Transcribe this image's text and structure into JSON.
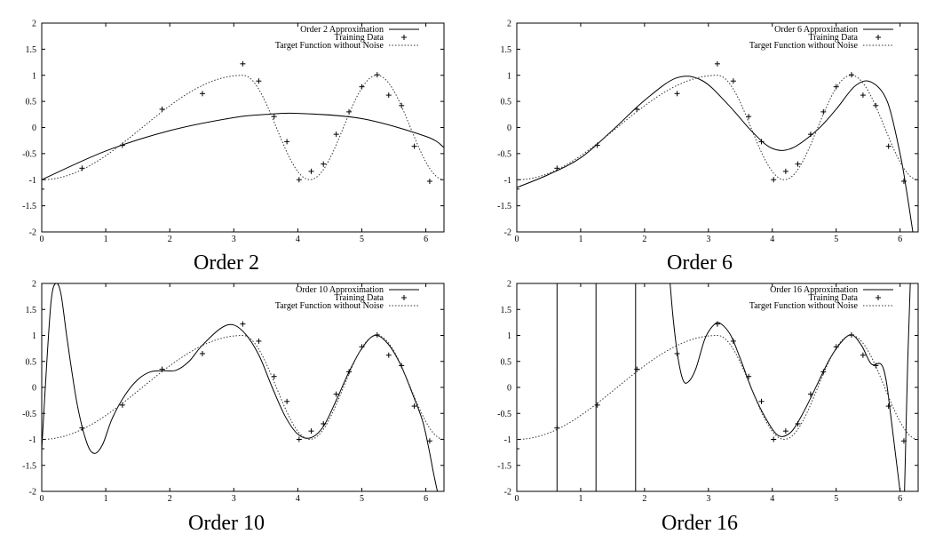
{
  "figure": {
    "captions": [
      "Order 2",
      "Order 6",
      "Order 10",
      "Order 16"
    ]
  },
  "chart_data": [
    {
      "type": "line",
      "order": 2,
      "legend_position": "top-right",
      "xlim": [
        0,
        6.2832
      ],
      "ylim": [
        -2,
        2
      ],
      "x_ticks": [
        0,
        1,
        2,
        3,
        4,
        5,
        6
      ],
      "y_ticks": [
        -2,
        -1.5,
        -1,
        -0.5,
        0,
        0.5,
        1,
        1.5,
        2
      ],
      "grid": false,
      "series": [
        {
          "name": "Order 2 Approximation",
          "style": "solid",
          "x": [
            0,
            1,
            2,
            3,
            3.5,
            4,
            5,
            6,
            6.28
          ],
          "y": [
            -1.0,
            -0.45,
            -0.06,
            0.19,
            0.25,
            0.27,
            0.17,
            -0.17,
            -0.38
          ]
        },
        {
          "name": "Training Data",
          "style": "plus",
          "x": [
            0,
            0.63,
            1.26,
            1.88,
            2.51,
            3.14,
            3.39,
            3.63,
            3.83,
            4.02,
            4.21,
            4.4,
            4.6,
            4.8,
            5.0,
            5.24,
            5.42,
            5.62,
            5.82,
            6.06
          ],
          "y": [
            -1.18,
            -0.78,
            -0.34,
            0.35,
            0.65,
            1.22,
            0.89,
            0.21,
            -0.27,
            -1.0,
            -0.84,
            -0.7,
            -0.13,
            0.3,
            0.78,
            1.01,
            0.62,
            0.42,
            -0.36,
            -1.03
          ]
        },
        {
          "name": "Target Function without Noise",
          "style": "dotted",
          "fn": "target"
        }
      ]
    },
    {
      "type": "line",
      "order": 6,
      "legend_position": "top-right",
      "xlim": [
        0,
        6.2832
      ],
      "ylim": [
        -2,
        2
      ],
      "x_ticks": [
        0,
        1,
        2,
        3,
        4,
        5,
        6
      ],
      "y_ticks": [
        -2,
        -1.5,
        -1,
        -0.5,
        0,
        0.5,
        1,
        1.5,
        2
      ],
      "grid": false,
      "series": [
        {
          "name": "Order 6 Approximation",
          "style": "solid",
          "x": [
            0,
            0.5,
            1.0,
            1.5,
            2.0,
            2.5,
            2.9,
            3.3,
            3.7,
            4.0,
            4.3,
            4.7,
            5.0,
            5.3,
            5.55,
            5.8,
            6.0,
            6.1,
            6.2
          ],
          "y": [
            -1.15,
            -0.9,
            -0.58,
            -0.05,
            0.52,
            0.95,
            0.9,
            0.45,
            -0.1,
            -0.4,
            -0.4,
            -0.05,
            0.35,
            0.8,
            0.87,
            0.5,
            -0.5,
            -1.2,
            -2.0
          ]
        },
        {
          "name": "Training Data",
          "style": "plus",
          "x": [
            0,
            0.63,
            1.26,
            1.88,
            2.51,
            3.14,
            3.39,
            3.63,
            3.83,
            4.02,
            4.21,
            4.4,
            4.6,
            4.8,
            5.0,
            5.24,
            5.42,
            5.62,
            5.82,
            6.06
          ],
          "y": [
            -1.18,
            -0.78,
            -0.34,
            0.35,
            0.65,
            1.22,
            0.89,
            0.21,
            -0.27,
            -1.0,
            -0.84,
            -0.7,
            -0.13,
            0.3,
            0.78,
            1.01,
            0.62,
            0.42,
            -0.36,
            -1.03
          ]
        },
        {
          "name": "Target Function without Noise",
          "style": "dotted",
          "fn": "target"
        }
      ]
    },
    {
      "type": "line",
      "order": 10,
      "legend_position": "top-right",
      "xlim": [
        0,
        6.2832
      ],
      "ylim": [
        -2,
        2
      ],
      "x_ticks": [
        0,
        1,
        2,
        3,
        4,
        5,
        6
      ],
      "y_ticks": [
        -2,
        -1.5,
        -1,
        -0.5,
        0,
        0.5,
        1,
        1.5,
        2
      ],
      "grid": false,
      "series": [
        {
          "name": "Order 10 Approximation",
          "style": "solid",
          "x": [
            0,
            0.08,
            0.15,
            0.22,
            0.3,
            0.4,
            0.55,
            0.7,
            0.82,
            0.95,
            1.1,
            1.3,
            1.5,
            1.7,
            1.9,
            2.1,
            2.3,
            2.5,
            2.8,
            3.0,
            3.2,
            3.4,
            3.6,
            3.8,
            4.0,
            4.2,
            4.4,
            4.6,
            4.8,
            5.0,
            5.2,
            5.4,
            5.6,
            5.8,
            5.95,
            6.05,
            6.12,
            6.18
          ],
          "y": [
            -1.2,
            0.5,
            1.7,
            2.0,
            1.8,
            0.9,
            -0.3,
            -1.05,
            -1.27,
            -1.1,
            -0.6,
            -0.15,
            0.15,
            0.3,
            0.32,
            0.33,
            0.5,
            0.8,
            1.14,
            1.2,
            1.0,
            0.6,
            0.0,
            -0.55,
            -0.9,
            -0.97,
            -0.75,
            -0.25,
            0.3,
            0.75,
            1.0,
            0.85,
            0.45,
            -0.15,
            -0.65,
            -1.2,
            -1.65,
            -2.0
          ]
        },
        {
          "name": "Training Data",
          "style": "plus",
          "x": [
            0,
            0.63,
            1.26,
            1.88,
            2.51,
            3.14,
            3.39,
            3.63,
            3.83,
            4.02,
            4.21,
            4.4,
            4.6,
            4.8,
            5.0,
            5.24,
            5.42,
            5.62,
            5.82,
            6.06
          ],
          "y": [
            -1.18,
            -0.78,
            -0.34,
            0.35,
            0.65,
            1.22,
            0.89,
            0.21,
            -0.27,
            -1.0,
            -0.84,
            -0.7,
            -0.13,
            0.3,
            0.78,
            1.01,
            0.62,
            0.42,
            -0.36,
            -1.03
          ]
        },
        {
          "name": "Target Function without Noise",
          "style": "dotted",
          "fn": "target"
        }
      ]
    },
    {
      "type": "line",
      "order": 16,
      "legend_position": "top-right",
      "xlim": [
        0,
        6.2832
      ],
      "ylim": [
        -2,
        2
      ],
      "x_ticks": [
        0,
        1,
        2,
        3,
        4,
        5,
        6
      ],
      "y_ticks": [
        -2,
        -1.5,
        -1,
        -0.5,
        0,
        0.5,
        1,
        1.5,
        2
      ],
      "grid": false,
      "series": [
        {
          "name": "Order 16 Approximation",
          "style": "solid",
          "segments": [
            {
              "x": [
                0.63,
                0.63
              ],
              "y": [
                2.0,
                -2.0
              ]
            },
            {
              "x": [
                1.24,
                1.24
              ],
              "y": [
                2.0,
                -2.0
              ]
            },
            {
              "x": [
                1.86,
                1.86
              ],
              "y": [
                -2.0,
                2.0
              ]
            },
            {
              "x": [
                2.4,
                2.45,
                2.52,
                2.6,
                2.68,
                2.8,
                2.95,
                3.1,
                3.2,
                3.35,
                3.5,
                3.7,
                3.9,
                4.1,
                4.3,
                4.5,
                4.7,
                4.9,
                5.1,
                5.25,
                5.4,
                5.55,
                5.7,
                5.78,
                5.85,
                5.95,
                6.0
              ],
              "y": [
                2.0,
                1.3,
                0.6,
                0.15,
                0.1,
                0.35,
                0.95,
                1.22,
                1.22,
                1.0,
                0.55,
                -0.1,
                -0.6,
                -0.93,
                -0.85,
                -0.45,
                0.05,
                0.55,
                0.9,
                1.01,
                0.8,
                0.45,
                0.45,
                0.15,
                -0.5,
                -1.5,
                -2.0
              ]
            },
            {
              "x": [
                6.07,
                6.12,
                6.16
              ],
              "y": [
                -2.0,
                0.5,
                2.0
              ]
            }
          ]
        },
        {
          "name": "Training Data",
          "style": "plus",
          "x": [
            0,
            0.63,
            1.26,
            1.88,
            2.51,
            3.14,
            3.39,
            3.63,
            3.83,
            4.02,
            4.21,
            4.4,
            4.6,
            4.8,
            5.0,
            5.24,
            5.42,
            5.62,
            5.82,
            6.06
          ],
          "y": [
            -1.18,
            -0.78,
            -0.34,
            0.35,
            0.65,
            1.22,
            0.89,
            0.21,
            -0.27,
            -1.0,
            -0.84,
            -0.7,
            -0.13,
            0.3,
            0.78,
            1.01,
            0.62,
            0.42,
            -0.36,
            -1.03
          ]
        },
        {
          "name": "Target Function without Noise",
          "style": "dotted",
          "fn": "target"
        }
      ]
    }
  ]
}
